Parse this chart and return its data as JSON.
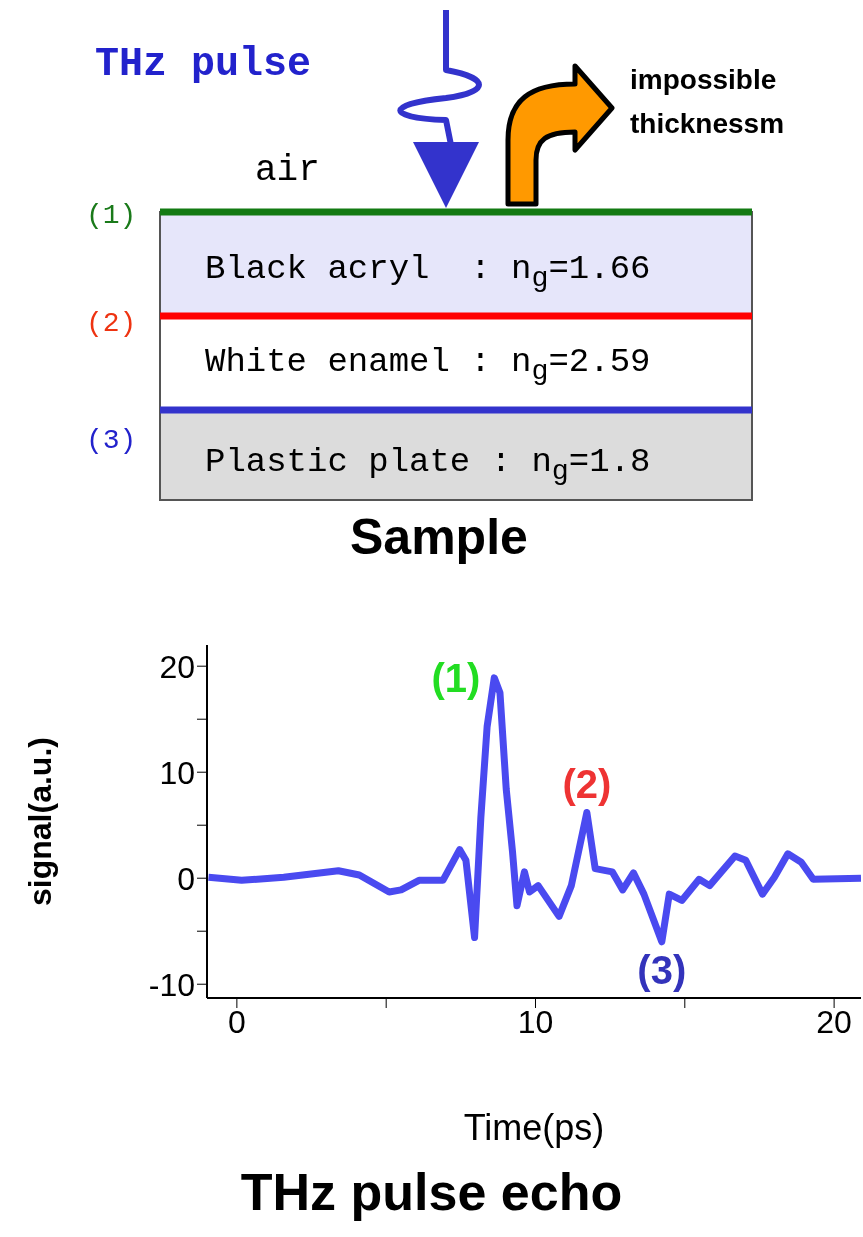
{
  "chart_data": {
    "type": "line",
    "title": "THz pulse echo",
    "xlabel": "Time(ps)",
    "ylabel": "signal(a.u.)",
    "x": [
      -0.95,
      0.16,
      1.57,
      3.4,
      4.1,
      5.1,
      5.5,
      6.1,
      6.9,
      7.46,
      7.67,
      7.96,
      8.17,
      8.38,
      8.62,
      8.81,
      9.02,
      9.23,
      9.38,
      9.63,
      9.8,
      10.09,
      10.79,
      11.2,
      11.72,
      12.0,
      12.57,
      12.92,
      13.28,
      13.63,
      14.23,
      14.48,
      14.9,
      15.48,
      15.83,
      16.68,
      17.04,
      17.6,
      18.0,
      18.45,
      18.9,
      19.3,
      20.9
    ],
    "series": [
      {
        "color": "#4a4af0",
        "values": [
          0.1,
          -0.2,
          0.1,
          0.7,
          0.3,
          -1.3,
          -1.1,
          -0.2,
          -0.2,
          2.7,
          1.7,
          -5.6,
          5.7,
          14.3,
          18.9,
          17.5,
          8.4,
          2.5,
          -2.6,
          0.6,
          -1.3,
          -0.7,
          -3.6,
          -0.7,
          6.2,
          0.9,
          0.6,
          -1.1,
          0.5,
          -1.5,
          -6.0,
          -1.5,
          -2.1,
          -0.1,
          -0.7,
          2.1,
          1.7,
          -1.5,
          0.1,
          2.3,
          1.5,
          -0.1,
          0
        ]
      }
    ],
    "xlim": [
      -1,
      20.9
    ],
    "xticks": [
      0,
      {
        "value": 5,
        "label": null
      },
      10,
      {
        "value": 15,
        "label": null
      },
      20
    ],
    "ylim": [
      -11.3,
      22
    ],
    "yticks": [
      -10,
      {
        "value": -5,
        "label": null
      },
      0,
      {
        "value": 5,
        "label": null
      },
      10,
      {
        "value": 15,
        "label": null
      },
      20
    ],
    "grid": false,
    "legend": false,
    "marker": "none",
    "line_style": "solid",
    "annotations": [
      "THz pulse",
      "air",
      "impossible thicknessm",
      "(1)",
      "(2)",
      "(3)",
      "Black acryl  : n$_{g}$=1.66",
      "White enamel : n$_{g}$=2.59",
      "Plastic plate : n$_{g}$=1.8",
      "Sample",
      {
        "text": "(1)",
        "x": 8.62,
        "y": 18.9
      },
      {
        "text": "(2)",
        "x": 11.72,
        "y": 6.2
      },
      {
        "text": "(3)",
        "x": 14.23,
        "y": -6.0
      }
    ]
  }
}
